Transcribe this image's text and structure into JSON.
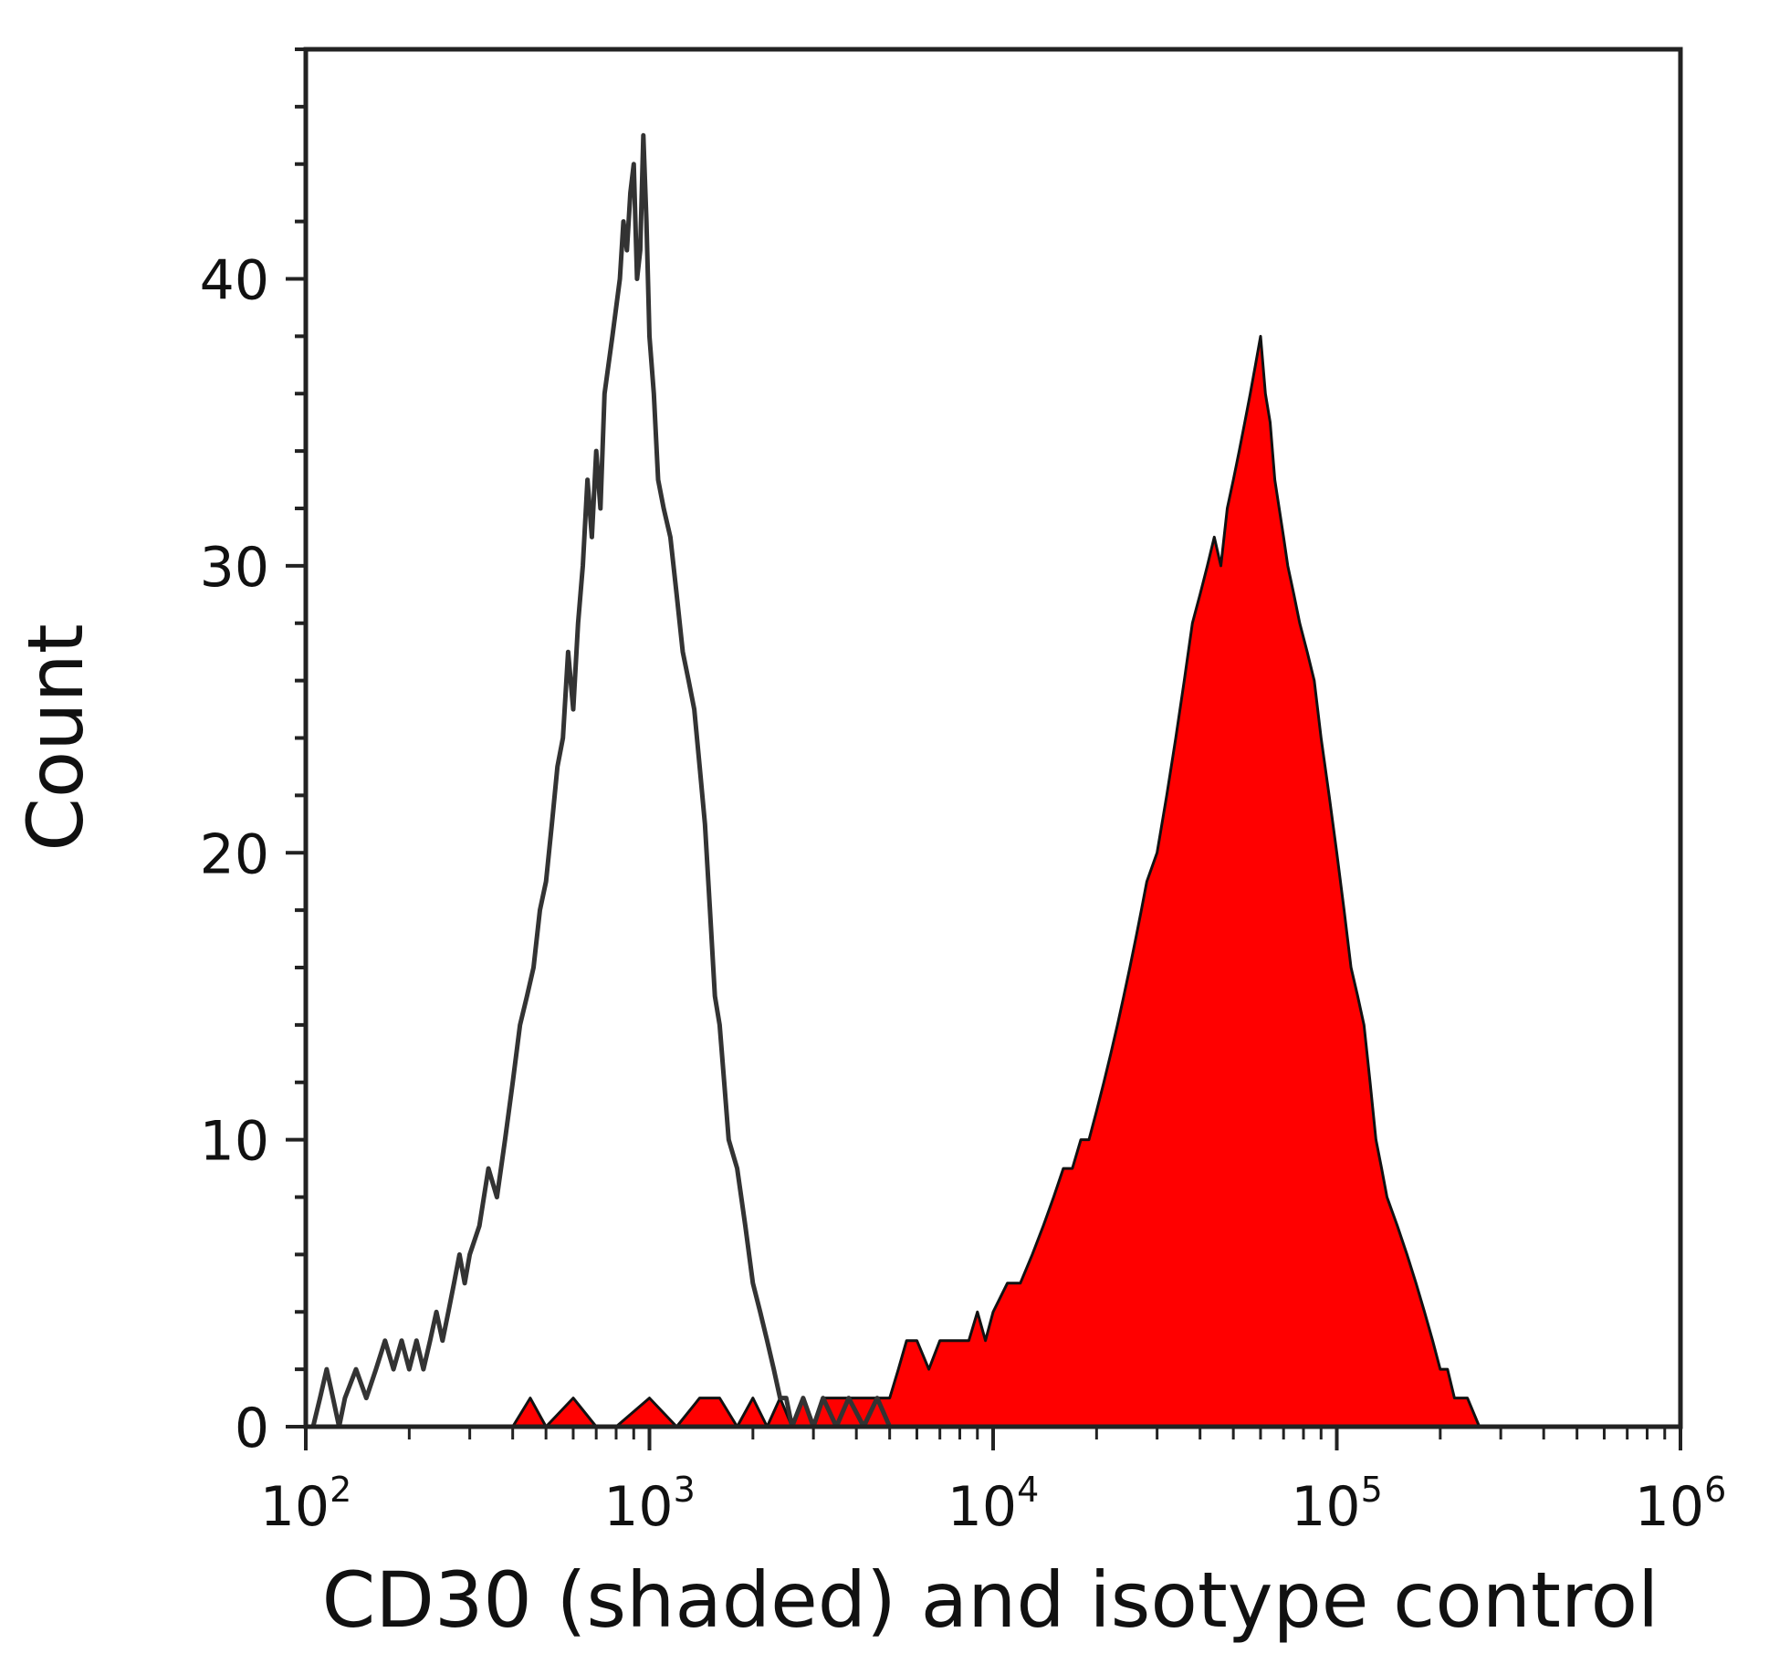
{
  "chart_data": {
    "type": "area",
    "title": "",
    "xlabel": "CD30 (shaded) and isotype control",
    "ylabel": "Count",
    "x_scale": "log",
    "xlim": [
      100,
      1000000
    ],
    "ylim": [
      0,
      48
    ],
    "x_ticks": [
      {
        "value": 100,
        "base": "10",
        "exp": "2"
      },
      {
        "value": 1000,
        "base": "10",
        "exp": "3"
      },
      {
        "value": 10000,
        "base": "10",
        "exp": "4"
      },
      {
        "value": 100000,
        "base": "10",
        "exp": "5"
      },
      {
        "value": 1000000,
        "base": "10",
        "exp": "6"
      }
    ],
    "y_ticks": [
      0,
      10,
      20,
      30,
      40
    ],
    "grid": false,
    "legend": "none",
    "series": [
      {
        "role": "isotype control",
        "style": "outline",
        "color": "#333333",
        "points": [
          [
            105,
            0
          ],
          [
            110,
            1
          ],
          [
            115,
            2
          ],
          [
            120,
            1
          ],
          [
            125,
            0
          ],
          [
            130,
            1
          ],
          [
            140,
            2
          ],
          [
            150,
            1
          ],
          [
            160,
            2
          ],
          [
            170,
            3
          ],
          [
            180,
            2
          ],
          [
            190,
            3
          ],
          [
            200,
            2
          ],
          [
            210,
            3
          ],
          [
            220,
            2
          ],
          [
            230,
            3
          ],
          [
            240,
            4
          ],
          [
            250,
            3
          ],
          [
            260,
            4
          ],
          [
            270,
            5
          ],
          [
            280,
            6
          ],
          [
            290,
            5
          ],
          [
            300,
            6
          ],
          [
            320,
            7
          ],
          [
            340,
            9
          ],
          [
            360,
            8
          ],
          [
            380,
            10
          ],
          [
            400,
            12
          ],
          [
            420,
            14
          ],
          [
            440,
            15
          ],
          [
            460,
            16
          ],
          [
            480,
            18
          ],
          [
            500,
            19
          ],
          [
            520,
            21
          ],
          [
            540,
            23
          ],
          [
            560,
            24
          ],
          [
            580,
            27
          ],
          [
            600,
            25
          ],
          [
            620,
            28
          ],
          [
            640,
            30
          ],
          [
            660,
            33
          ],
          [
            680,
            31
          ],
          [
            700,
            34
          ],
          [
            720,
            32
          ],
          [
            740,
            36
          ],
          [
            760,
            37
          ],
          [
            780,
            38
          ],
          [
            800,
            39
          ],
          [
            820,
            40
          ],
          [
            840,
            42
          ],
          [
            860,
            41
          ],
          [
            880,
            43
          ],
          [
            900,
            44
          ],
          [
            920,
            40
          ],
          [
            940,
            41
          ],
          [
            960,
            45
          ],
          [
            980,
            42
          ],
          [
            1000,
            38
          ],
          [
            1030,
            36
          ],
          [
            1060,
            33
          ],
          [
            1100,
            32
          ],
          [
            1150,
            31
          ],
          [
            1200,
            29
          ],
          [
            1250,
            27
          ],
          [
            1300,
            26
          ],
          [
            1350,
            25
          ],
          [
            1400,
            23
          ],
          [
            1450,
            21
          ],
          [
            1500,
            18
          ],
          [
            1550,
            15
          ],
          [
            1600,
            14
          ],
          [
            1650,
            12
          ],
          [
            1700,
            10
          ],
          [
            1800,
            9
          ],
          [
            1900,
            7
          ],
          [
            2000,
            5
          ],
          [
            2100,
            4
          ],
          [
            2200,
            3
          ],
          [
            2300,
            2
          ],
          [
            2400,
            1
          ],
          [
            2500,
            1
          ],
          [
            2600,
            0
          ],
          [
            2800,
            1
          ],
          [
            3000,
            0
          ],
          [
            3200,
            1
          ],
          [
            3500,
            0
          ],
          [
            3800,
            1
          ],
          [
            4200,
            0
          ],
          [
            4600,
            1
          ],
          [
            5000,
            0
          ],
          [
            5500,
            0
          ]
        ]
      },
      {
        "role": "CD30 (shaded)",
        "style": "filled",
        "color": "#ff0000",
        "points": [
          [
            400,
            0
          ],
          [
            450,
            1
          ],
          [
            500,
            0
          ],
          [
            600,
            1
          ],
          [
            700,
            0
          ],
          [
            800,
            0
          ],
          [
            1000,
            1
          ],
          [
            1200,
            0
          ],
          [
            1400,
            1
          ],
          [
            1600,
            1
          ],
          [
            1800,
            0
          ],
          [
            2000,
            1
          ],
          [
            2200,
            0
          ],
          [
            2400,
            1
          ],
          [
            2600,
            0
          ],
          [
            2800,
            1
          ],
          [
            3000,
            0
          ],
          [
            3200,
            1
          ],
          [
            3500,
            1
          ],
          [
            3800,
            1
          ],
          [
            4200,
            1
          ],
          [
            4600,
            1
          ],
          [
            5000,
            1
          ],
          [
            5300,
            2
          ],
          [
            5600,
            3
          ],
          [
            6000,
            3
          ],
          [
            6500,
            2
          ],
          [
            7000,
            3
          ],
          [
            7500,
            3
          ],
          [
            8000,
            3
          ],
          [
            8500,
            3
          ],
          [
            9000,
            4
          ],
          [
            9500,
            3
          ],
          [
            10000,
            4
          ],
          [
            11000,
            5
          ],
          [
            12000,
            5
          ],
          [
            13000,
            6
          ],
          [
            14000,
            7
          ],
          [
            15000,
            8
          ],
          [
            16000,
            9
          ],
          [
            17000,
            9
          ],
          [
            18000,
            10
          ],
          [
            19000,
            10
          ],
          [
            20000,
            11
          ],
          [
            21000,
            12
          ],
          [
            22000,
            13
          ],
          [
            23000,
            14
          ],
          [
            24000,
            15
          ],
          [
            25000,
            16
          ],
          [
            26000,
            17
          ],
          [
            27000,
            18
          ],
          [
            28000,
            19
          ],
          [
            30000,
            20
          ],
          [
            32000,
            22
          ],
          [
            34000,
            24
          ],
          [
            36000,
            26
          ],
          [
            38000,
            28
          ],
          [
            40000,
            29
          ],
          [
            42000,
            30
          ],
          [
            44000,
            31
          ],
          [
            46000,
            30
          ],
          [
            48000,
            32
          ],
          [
            50000,
            33
          ],
          [
            52000,
            34
          ],
          [
            54000,
            35
          ],
          [
            56000,
            36
          ],
          [
            58000,
            37
          ],
          [
            60000,
            38
          ],
          [
            62000,
            36
          ],
          [
            64000,
            35
          ],
          [
            66000,
            33
          ],
          [
            68000,
            32
          ],
          [
            70000,
            31
          ],
          [
            72000,
            30
          ],
          [
            75000,
            29
          ],
          [
            78000,
            28
          ],
          [
            82000,
            27
          ],
          [
            86000,
            26
          ],
          [
            90000,
            24
          ],
          [
            95000,
            22
          ],
          [
            100000,
            20
          ],
          [
            105000,
            18
          ],
          [
            110000,
            16
          ],
          [
            115000,
            15
          ],
          [
            120000,
            14
          ],
          [
            125000,
            12
          ],
          [
            130000,
            10
          ],
          [
            135000,
            9
          ],
          [
            140000,
            8
          ],
          [
            150000,
            7
          ],
          [
            160000,
            6
          ],
          [
            170000,
            5
          ],
          [
            180000,
            4
          ],
          [
            190000,
            3
          ],
          [
            200000,
            2
          ],
          [
            210000,
            2
          ],
          [
            220000,
            1
          ],
          [
            240000,
            1
          ],
          [
            260000,
            0
          ],
          [
            280000,
            0
          ]
        ]
      }
    ]
  }
}
